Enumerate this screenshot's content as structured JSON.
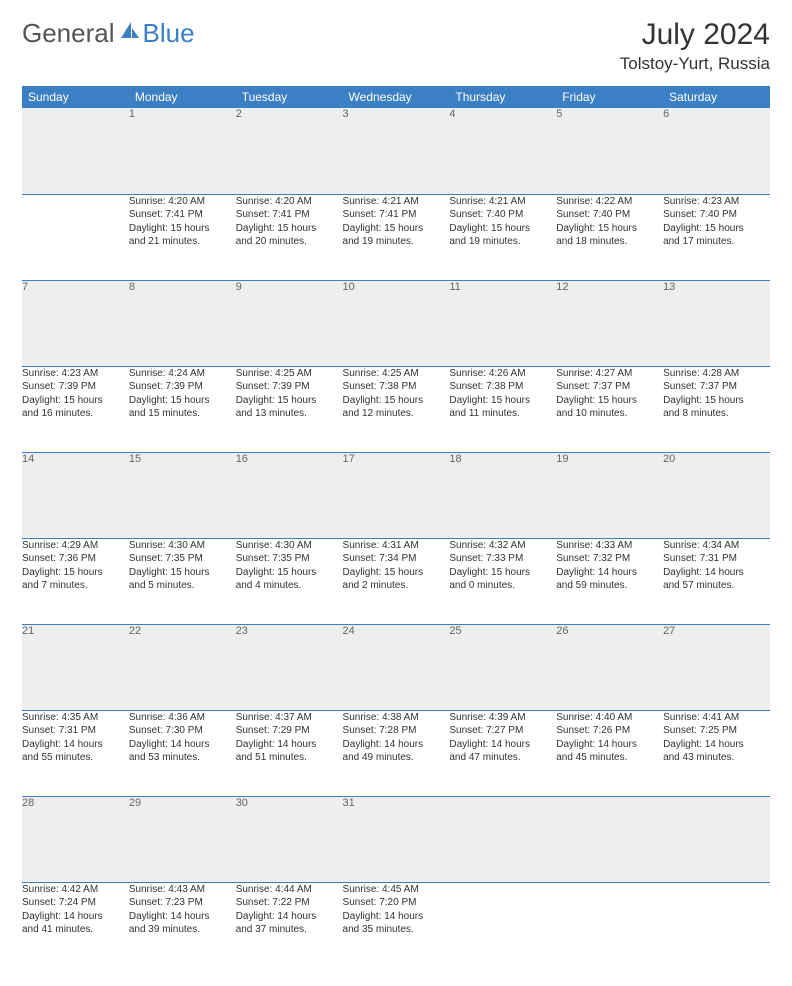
{
  "logo": {
    "general": "General",
    "blue": "Blue"
  },
  "title": "July 2024",
  "location": "Tolstoy-Yurt, Russia",
  "day_headers": [
    "Sunday",
    "Monday",
    "Tuesday",
    "Wednesday",
    "Thursday",
    "Friday",
    "Saturday"
  ],
  "colors": {
    "header_bg": "#3b7fc4",
    "header_text": "#ffffff",
    "daynum_bg": "#eeeeee",
    "daynum_text": "#666666",
    "body_text": "#333333",
    "rule": "#3b7fc4"
  },
  "weeks": [
    {
      "nums": [
        "",
        "1",
        "2",
        "3",
        "4",
        "5",
        "6"
      ],
      "cells": [
        [],
        [
          "Sunrise: 4:20 AM",
          "Sunset: 7:41 PM",
          "Daylight: 15 hours",
          "and 21 minutes."
        ],
        [
          "Sunrise: 4:20 AM",
          "Sunset: 7:41 PM",
          "Daylight: 15 hours",
          "and 20 minutes."
        ],
        [
          "Sunrise: 4:21 AM",
          "Sunset: 7:41 PM",
          "Daylight: 15 hours",
          "and 19 minutes."
        ],
        [
          "Sunrise: 4:21 AM",
          "Sunset: 7:40 PM",
          "Daylight: 15 hours",
          "and 19 minutes."
        ],
        [
          "Sunrise: 4:22 AM",
          "Sunset: 7:40 PM",
          "Daylight: 15 hours",
          "and 18 minutes."
        ],
        [
          "Sunrise: 4:23 AM",
          "Sunset: 7:40 PM",
          "Daylight: 15 hours",
          "and 17 minutes."
        ]
      ]
    },
    {
      "nums": [
        "7",
        "8",
        "9",
        "10",
        "11",
        "12",
        "13"
      ],
      "cells": [
        [
          "Sunrise: 4:23 AM",
          "Sunset: 7:39 PM",
          "Daylight: 15 hours",
          "and 16 minutes."
        ],
        [
          "Sunrise: 4:24 AM",
          "Sunset: 7:39 PM",
          "Daylight: 15 hours",
          "and 15 minutes."
        ],
        [
          "Sunrise: 4:25 AM",
          "Sunset: 7:39 PM",
          "Daylight: 15 hours",
          "and 13 minutes."
        ],
        [
          "Sunrise: 4:25 AM",
          "Sunset: 7:38 PM",
          "Daylight: 15 hours",
          "and 12 minutes."
        ],
        [
          "Sunrise: 4:26 AM",
          "Sunset: 7:38 PM",
          "Daylight: 15 hours",
          "and 11 minutes."
        ],
        [
          "Sunrise: 4:27 AM",
          "Sunset: 7:37 PM",
          "Daylight: 15 hours",
          "and 10 minutes."
        ],
        [
          "Sunrise: 4:28 AM",
          "Sunset: 7:37 PM",
          "Daylight: 15 hours",
          "and 8 minutes."
        ]
      ]
    },
    {
      "nums": [
        "14",
        "15",
        "16",
        "17",
        "18",
        "19",
        "20"
      ],
      "cells": [
        [
          "Sunrise: 4:29 AM",
          "Sunset: 7:36 PM",
          "Daylight: 15 hours",
          "and 7 minutes."
        ],
        [
          "Sunrise: 4:30 AM",
          "Sunset: 7:35 PM",
          "Daylight: 15 hours",
          "and 5 minutes."
        ],
        [
          "Sunrise: 4:30 AM",
          "Sunset: 7:35 PM",
          "Daylight: 15 hours",
          "and 4 minutes."
        ],
        [
          "Sunrise: 4:31 AM",
          "Sunset: 7:34 PM",
          "Daylight: 15 hours",
          "and 2 minutes."
        ],
        [
          "Sunrise: 4:32 AM",
          "Sunset: 7:33 PM",
          "Daylight: 15 hours",
          "and 0 minutes."
        ],
        [
          "Sunrise: 4:33 AM",
          "Sunset: 7:32 PM",
          "Daylight: 14 hours",
          "and 59 minutes."
        ],
        [
          "Sunrise: 4:34 AM",
          "Sunset: 7:31 PM",
          "Daylight: 14 hours",
          "and 57 minutes."
        ]
      ]
    },
    {
      "nums": [
        "21",
        "22",
        "23",
        "24",
        "25",
        "26",
        "27"
      ],
      "cells": [
        [
          "Sunrise: 4:35 AM",
          "Sunset: 7:31 PM",
          "Daylight: 14 hours",
          "and 55 minutes."
        ],
        [
          "Sunrise: 4:36 AM",
          "Sunset: 7:30 PM",
          "Daylight: 14 hours",
          "and 53 minutes."
        ],
        [
          "Sunrise: 4:37 AM",
          "Sunset: 7:29 PM",
          "Daylight: 14 hours",
          "and 51 minutes."
        ],
        [
          "Sunrise: 4:38 AM",
          "Sunset: 7:28 PM",
          "Daylight: 14 hours",
          "and 49 minutes."
        ],
        [
          "Sunrise: 4:39 AM",
          "Sunset: 7:27 PM",
          "Daylight: 14 hours",
          "and 47 minutes."
        ],
        [
          "Sunrise: 4:40 AM",
          "Sunset: 7:26 PM",
          "Daylight: 14 hours",
          "and 45 minutes."
        ],
        [
          "Sunrise: 4:41 AM",
          "Sunset: 7:25 PM",
          "Daylight: 14 hours",
          "and 43 minutes."
        ]
      ]
    },
    {
      "nums": [
        "28",
        "29",
        "30",
        "31",
        "",
        "",
        ""
      ],
      "cells": [
        [
          "Sunrise: 4:42 AM",
          "Sunset: 7:24 PM",
          "Daylight: 14 hours",
          "and 41 minutes."
        ],
        [
          "Sunrise: 4:43 AM",
          "Sunset: 7:23 PM",
          "Daylight: 14 hours",
          "and 39 minutes."
        ],
        [
          "Sunrise: 4:44 AM",
          "Sunset: 7:22 PM",
          "Daylight: 14 hours",
          "and 37 minutes."
        ],
        [
          "Sunrise: 4:45 AM",
          "Sunset: 7:20 PM",
          "Daylight: 14 hours",
          "and 35 minutes."
        ],
        [],
        [],
        []
      ]
    }
  ]
}
